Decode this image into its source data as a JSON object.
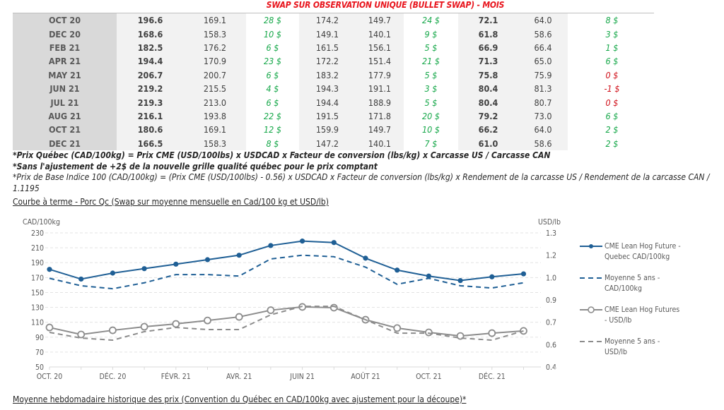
{
  "table": {
    "title": "SWAP SUR OBSERVATION UNIQUE (BULLET SWAP) - MOIS",
    "rows": [
      {
        "month": "OCT 20",
        "c1": "196.6",
        "c2": "169.1",
        "c3": "28 $",
        "c4": "174.2",
        "c5": "149.7",
        "c6": "24 $",
        "c7": "72.1",
        "c8": "64.0",
        "c9": "8 $"
      },
      {
        "month": "DEC 20",
        "c1": "168.6",
        "c2": "158.3",
        "c3": "10 $",
        "c4": "149.1",
        "c5": "140.1",
        "c6": "9 $",
        "c7": "61.8",
        "c8": "58.6",
        "c9": "3 $"
      },
      {
        "month": "FEB 21",
        "c1": "182.5",
        "c2": "176.2",
        "c3": "6 $",
        "c4": "161.5",
        "c5": "156.1",
        "c6": "5 $",
        "c7": "66.9",
        "c8": "66.4",
        "c9": "1 $"
      },
      {
        "month": "APR 21",
        "c1": "194.4",
        "c2": "170.9",
        "c3": "23 $",
        "c4": "172.2",
        "c5": "151.4",
        "c6": "21 $",
        "c7": "71.3",
        "c8": "65.0",
        "c9": "6 $"
      },
      {
        "month": "MAY 21",
        "c1": "206.7",
        "c2": "200.7",
        "c3": "6 $",
        "c4": "183.2",
        "c5": "177.9",
        "c6": "5 $",
        "c7": "75.8",
        "c8": "75.9",
        "c9": "0 $"
      },
      {
        "month": "JUN 21",
        "c1": "219.2",
        "c2": "215.5",
        "c3": "4 $",
        "c4": "194.3",
        "c5": "191.1",
        "c6": "3 $",
        "c7": "80.4",
        "c8": "81.3",
        "c9": "-1 $"
      },
      {
        "month": "JUL 21",
        "c1": "219.3",
        "c2": "213.0",
        "c3": "6 $",
        "c4": "194.4",
        "c5": "188.9",
        "c6": "5 $",
        "c7": "80.4",
        "c8": "80.7",
        "c9": "0 $"
      },
      {
        "month": "AUG 21",
        "c1": "216.1",
        "c2": "193.8",
        "c3": "22 $",
        "c4": "191.5",
        "c5": "171.8",
        "c6": "20 $",
        "c7": "79.2",
        "c8": "73.0",
        "c9": "6 $"
      },
      {
        "month": "OCT 21",
        "c1": "180.6",
        "c2": "169.1",
        "c3": "12 $",
        "c4": "159.9",
        "c5": "149.7",
        "c6": "10 $",
        "c7": "66.2",
        "c8": "64.0",
        "c9": "2 $"
      },
      {
        "month": "DEC 21",
        "c1": "166.5",
        "c2": "158.3",
        "c3": "8 $",
        "c4": "147.2",
        "c5": "140.1",
        "c6": "7 $",
        "c7": "61.0",
        "c8": "58.6",
        "c9": "2 $"
      }
    ],
    "negative_cells": [
      "4.c9",
      "5.c9",
      "6.c9"
    ],
    "colors": {
      "positive": "#17a84a",
      "negative": "#d0101a",
      "title": "#e8141c"
    }
  },
  "notes": {
    "line1": "*Prix Québec (CAD/100kg) = Prix CME (USD/100lbs) x USDCAD x Facteur de conversion (lbs/kg) x Carcasse US / Carcasse CAN",
    "line2": "*Sans l'ajustement de +2$ de la nouvelle grille qualité québec pour le prix comptant",
    "line3": "*Prix de Base Indice 100 (CAD/100kg) = (Prix CME (USD/100lbs) - 0.56) x USDCAD x Facteur de conversion (lbs/kg) x Rendement de la carcasse US / Rendement de la carcasse CAN / 1.1195"
  },
  "sections": {
    "chart_heading": "Courbe à terme - Porc Qc (Swap sur moyenne mensuelle en Cad/100 kg et USD/lb)",
    "weekly_heading": "Moyenne hebdomadaire historique des prix (Convention du Québec en CAD/100kg avec ajustement pour la découpe)*"
  },
  "chart_data": {
    "type": "line",
    "title": "",
    "x": [
      "OCT. 20",
      "NOV. 20",
      "DÉC. 20",
      "JANV. 21",
      "FÉVR. 21",
      "MARS 21",
      "AVR. 21",
      "MAI 21",
      "JUIN 21",
      "JUIL. 21",
      "AOÛT 21",
      "SEPT. 21",
      "OCT. 21",
      "NOV. 21",
      "DÉC. 21",
      "JANV. 22"
    ],
    "x_tick_labels": [
      "OCT. 20",
      "",
      "DÉC. 20",
      "",
      "FÉVR. 21",
      "",
      "AVR. 21",
      "",
      "JUIN 21",
      "",
      "AOÛT 21",
      "",
      "OCT. 21",
      "",
      "DÉC. 21",
      ""
    ],
    "ylabel": "CAD/100kg",
    "ylabel_right": "USD/lb",
    "ylim": [
      50,
      230
    ],
    "yticks": [
      230,
      210,
      190,
      170,
      150,
      130,
      110,
      90,
      70,
      50
    ],
    "ylim_right": [
      0.4,
      1.3
    ],
    "yticks_right_labels": [
      "1.3",
      "1.2",
      "1.0",
      "0.9",
      "0.7",
      "0.6",
      "0.4"
    ],
    "grid": true,
    "legend_position": "right",
    "series": [
      {
        "name": "CME Lean Hog Future - Quebec CAD/100kg",
        "axis": "left",
        "style": "solid-marker-filled",
        "color": "#1f5f95",
        "values": [
          181,
          168,
          176,
          182,
          188,
          194,
          200,
          213,
          219,
          217,
          196,
          180,
          172,
          166,
          171,
          175
        ]
      },
      {
        "name": "Moyenne 5 ans - CAD/100kg",
        "axis": "left",
        "style": "dashed",
        "color": "#1f5f95",
        "values": [
          169,
          159,
          155,
          163,
          174,
          174,
          172,
          195,
          200,
          198,
          184,
          161,
          169,
          159,
          156,
          163
        ]
      },
      {
        "name": "CME Lean Hog Futures - USD/lb",
        "axis": "right",
        "style": "solid-marker-hollow",
        "color": "#8c8c8c",
        "values": [
          0.665,
          0.618,
          0.646,
          0.67,
          0.689,
          0.712,
          0.736,
          0.781,
          0.803,
          0.798,
          0.717,
          0.661,
          0.632,
          0.608,
          0.627,
          0.642
        ]
      },
      {
        "name": "Moyenne 5 ans - USD/lb",
        "axis": "right",
        "style": "dashed",
        "color": "#8c8c8c",
        "values": [
          0.632,
          0.594,
          0.58,
          0.637,
          0.665,
          0.651,
          0.651,
          0.75,
          0.807,
          0.807,
          0.717,
          0.627,
          0.627,
          0.594,
          0.58,
          0.642
        ]
      }
    ],
    "legend": [
      {
        "line1": "CME Lean Hog Future -",
        "line2": "Quebec CAD/100kg"
      },
      {
        "line1": "Moyenne 5 ans -",
        "line2": "CAD/100kg"
      },
      {
        "line1": "CME Lean Hog Futures",
        "line2": "- USD/lb"
      },
      {
        "line1": "Moyenne 5 ans -",
        "line2": "USD/lb"
      }
    ]
  }
}
